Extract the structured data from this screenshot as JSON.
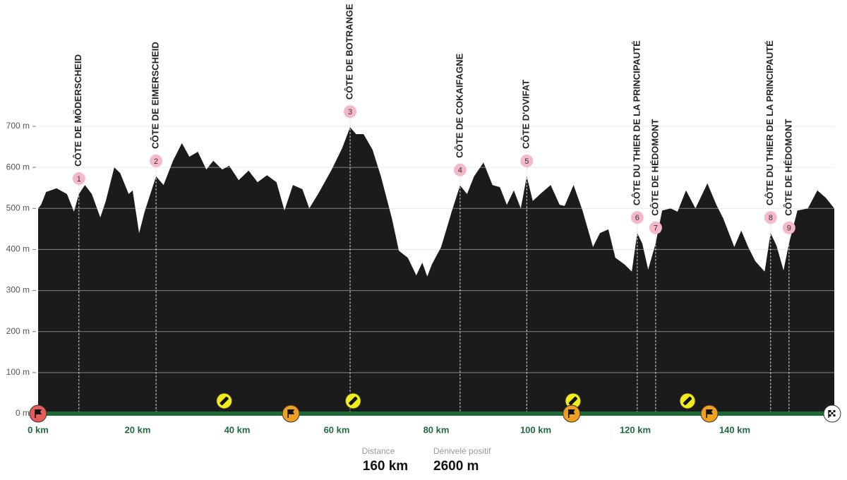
{
  "chart_data": {
    "type": "area",
    "x": [
      0,
      0.6,
      1.6,
      3.7,
      5.8,
      7.2,
      8.2,
      9.4,
      10.8,
      12.5,
      13.6,
      15.3,
      16.5,
      18.2,
      19,
      20.3,
      21.4,
      23.7,
      25.2,
      27.1,
      28.9,
      30.4,
      32.1,
      33.8,
      35.2,
      37,
      38.4,
      40.3,
      42.3,
      44.1,
      46,
      47.9,
      49.5,
      51.2,
      53.1,
      54.5,
      56.5,
      59,
      61.1,
      62.7,
      63.9,
      65.4,
      67.2,
      68.9,
      71.1,
      72.5,
      74.3,
      76,
      77.2,
      78.2,
      79.1,
      81,
      83.1,
      84.8,
      86.2,
      87.6,
      89.5,
      91.3,
      92.8,
      94.2,
      95.6,
      97,
      98.2,
      99.4,
      100.9,
      103,
      104.8,
      105.8,
      107.6,
      109.4,
      111.5,
      112.9,
      114.6,
      116,
      117.9,
      119.3,
      120.4,
      121.4,
      122.6,
      124.1,
      125.4,
      127.1,
      128.5,
      130.2,
      132.1,
      134.5,
      136.3,
      137.7,
      139.9,
      141.3,
      142.7,
      144.1,
      146,
      147.2,
      148.4,
      149.8,
      150.9,
      152.6,
      154.7,
      156.6,
      158.3,
      160
    ],
    "values": [
      500,
      509,
      540,
      549,
      535,
      492,
      535,
      557,
      535,
      478,
      518,
      600,
      586,
      535,
      544,
      440,
      492,
      578,
      557,
      616,
      659,
      626,
      638,
      595,
      616,
      595,
      604,
      569,
      592,
      564,
      581,
      564,
      495,
      557,
      547,
      500,
      540,
      595,
      647,
      698,
      681,
      681,
      643,
      578,
      475,
      397,
      380,
      337,
      368,
      334,
      363,
      406,
      492,
      556,
      535,
      578,
      612,
      557,
      552,
      509,
      544,
      500,
      578,
      518,
      535,
      557,
      509,
      506,
      557,
      495,
      406,
      440,
      449,
      380,
      363,
      346,
      440,
      415,
      351,
      415,
      495,
      500,
      492,
      544,
      500,
      561,
      509,
      475,
      406,
      446,
      406,
      372,
      346,
      440,
      409,
      349,
      415,
      495,
      500,
      544,
      526,
      500
    ],
    "color": "#1b1b1b",
    "xlim": [
      0,
      160
    ],
    "ylim": [
      0,
      700
    ],
    "xticks": [
      {
        "value": 0,
        "label": "0 km"
      },
      {
        "value": 20,
        "label": "20 km"
      },
      {
        "value": 40,
        "label": "40 km"
      },
      {
        "value": 60,
        "label": "60 km"
      },
      {
        "value": 80,
        "label": "80 km"
      },
      {
        "value": 100,
        "label": "100 km"
      },
      {
        "value": 120,
        "label": "120 km"
      },
      {
        "value": 140,
        "label": "140 km"
      }
    ],
    "yticks": [
      {
        "value": 0,
        "label": "0 m"
      },
      {
        "value": 100,
        "label": "100 m"
      },
      {
        "value": 200,
        "label": "200 m"
      },
      {
        "value": 300,
        "label": "300 m"
      },
      {
        "value": 400,
        "label": "400 m"
      },
      {
        "value": 500,
        "label": "500 m"
      },
      {
        "value": 600,
        "label": "600 m"
      },
      {
        "value": 700,
        "label": "700 m"
      }
    ],
    "grid": true,
    "climbs": [
      {
        "number": 1,
        "name": "CÔTE DE MÖDERSCHEID",
        "km": 8.2
      },
      {
        "number": 2,
        "name": "CÔTE DE EIMERSCHEID",
        "km": 23.7
      },
      {
        "number": 3,
        "name": "CÔTE DE BOTRANGE",
        "km": 62.7
      },
      {
        "number": 4,
        "name": "CÔTE DE COKAIFAGNE",
        "km": 84.8
      },
      {
        "number": 5,
        "name": "CÔTE D'OVIFAT",
        "km": 98.2
      },
      {
        "number": 6,
        "name": "CÔTE DU THIER DE LA PRINCIPAUTÉ",
        "km": 120.4
      },
      {
        "number": 7,
        "name": "CÔTE DE HÉDOMONT",
        "km": 124.1
      },
      {
        "number": 8,
        "name": "CÔTE DU THIER DE LA PRINCIPAUTÉ",
        "km": 147.2
      },
      {
        "number": 9,
        "name": "CÔTE DE HÉDOMONT",
        "km": 150.9
      }
    ],
    "sprints": [
      50.8,
      107.2,
      134.9
    ],
    "feed_zones": [
      37.4,
      63.3,
      107.5,
      130.5
    ],
    "stats": [
      {
        "label": "Distance",
        "value": "160 km"
      },
      {
        "label": "Dénivelé positif",
        "value": "2600 m"
      }
    ]
  }
}
